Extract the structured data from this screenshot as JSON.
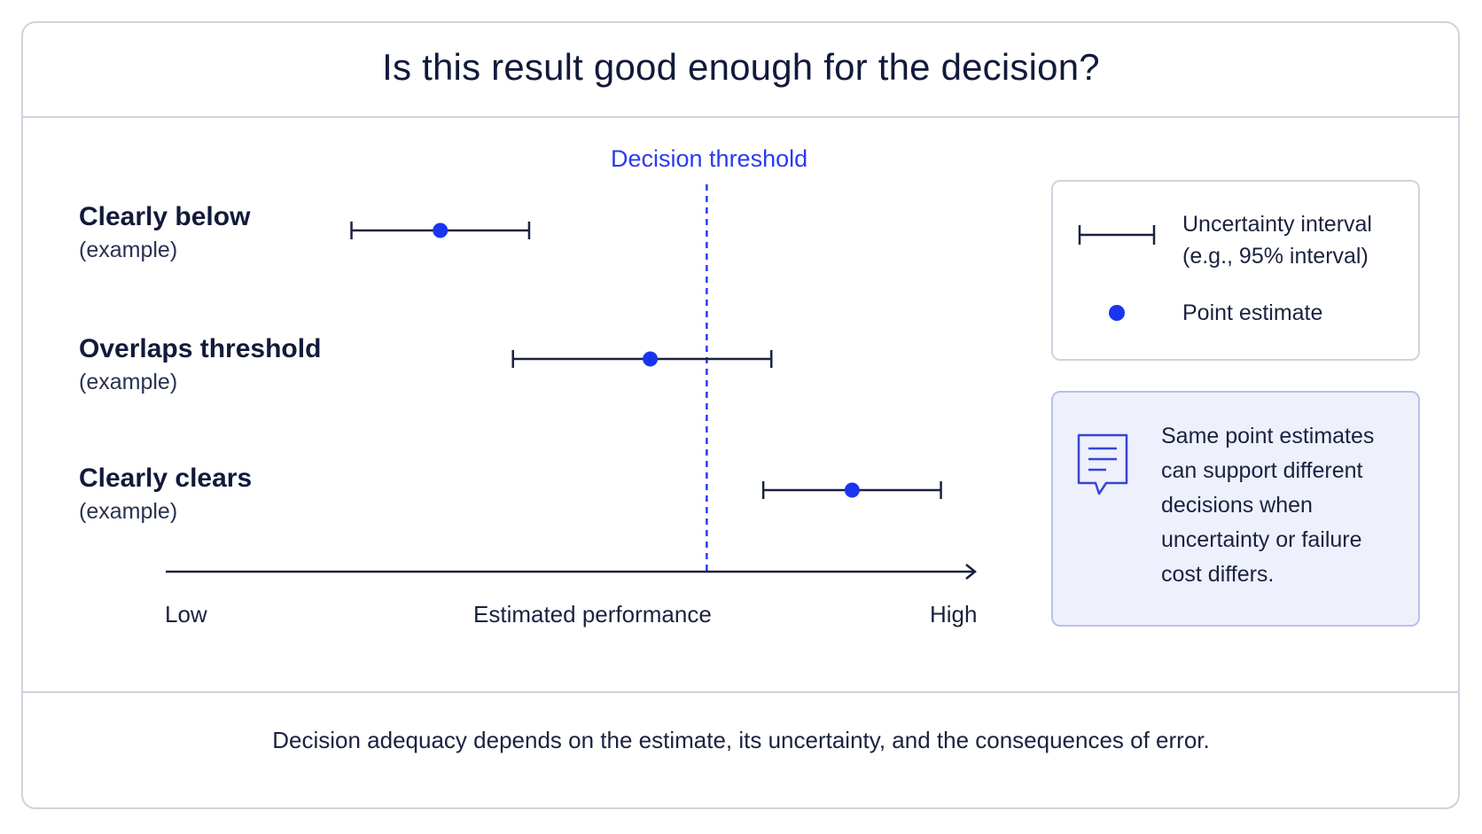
{
  "title": "Is this result good enough for the decision?",
  "threshold": {
    "label": "Decision threshold",
    "value": 0.67,
    "color": "#2a3bf0"
  },
  "rows": [
    {
      "label": "Clearly below",
      "sublabel": "(example)",
      "low": 0.23,
      "estimate": 0.34,
      "high": 0.45
    },
    {
      "label": "Overlaps threshold",
      "sublabel": "(example)",
      "low": 0.43,
      "estimate": 0.6,
      "high": 0.75
    },
    {
      "label": "Clearly clears",
      "sublabel": "(example)",
      "low": 0.74,
      "estimate": 0.85,
      "high": 0.96
    }
  ],
  "axis": {
    "low_label": "Low",
    "center_label": "Estimated performance",
    "high_label": "High"
  },
  "legend": {
    "interval_label_line1": "Uncertainty interval",
    "interval_label_line2": "(e.g., 95% interval)",
    "point_label": "Point estimate"
  },
  "note": {
    "icon": "document-icon",
    "text": "Same point estimates can support different decisions when uncertainty or failure cost differs."
  },
  "footer": "Decision adequacy depends on the estimate, its uncertainty, and the consequences of error.",
  "colors": {
    "point": "#1a35f0",
    "interval": "#1b2240",
    "accent": "#2a3bf0"
  }
}
